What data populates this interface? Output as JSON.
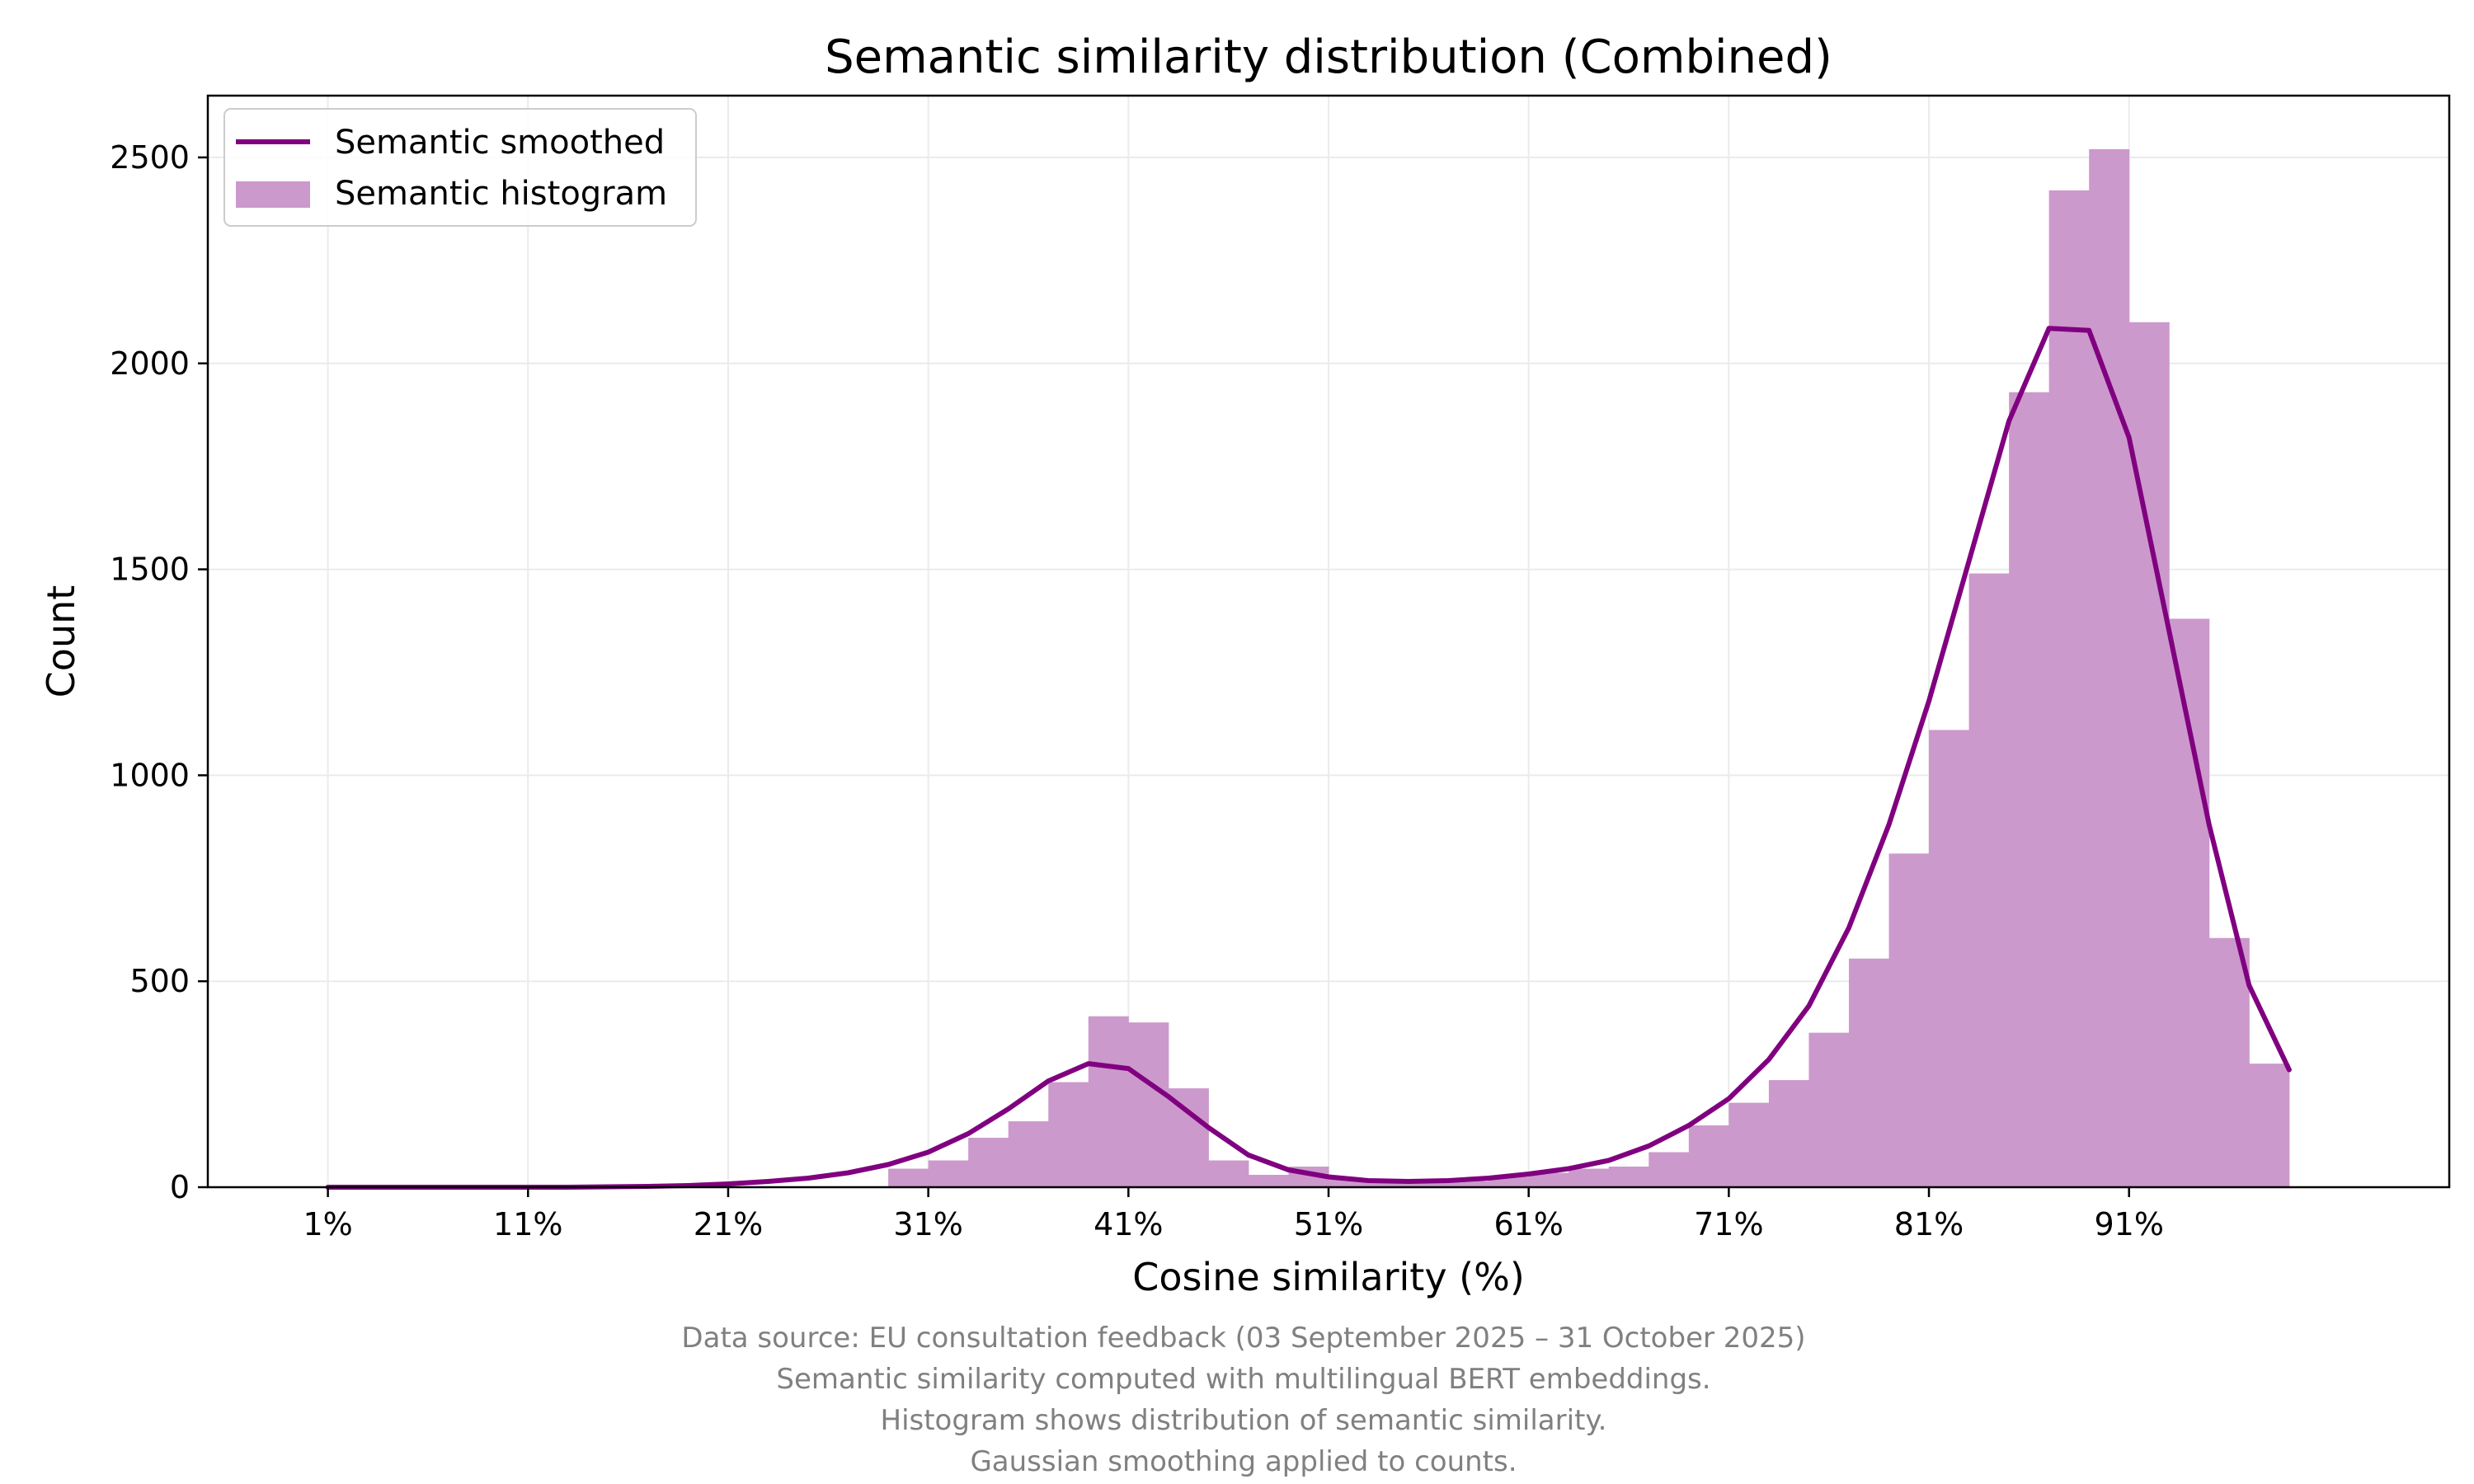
{
  "chart_data": {
    "type": "bar",
    "title": "Semantic similarity distribution (Combined)",
    "xlabel": "Cosine similarity (%)",
    "ylabel": "Count",
    "xlim": [
      -5,
      107
    ],
    "ylim": [
      0,
      2650
    ],
    "grid": true,
    "x_ticks": [
      1,
      11,
      21,
      31,
      41,
      51,
      61,
      71,
      81,
      91
    ],
    "x_tick_labels": [
      "1%",
      "11%",
      "21%",
      "31%",
      "41%",
      "51%",
      "61%",
      "71%",
      "81%",
      "91%"
    ],
    "y_ticks": [
      0,
      500,
      1000,
      1500,
      2000,
      2500
    ],
    "y_tick_labels": [
      "0",
      "500",
      "1000",
      "1500",
      "2000",
      "2500"
    ],
    "legend_position": "top-left",
    "bar_color": "#cc99cc",
    "line_color": "#800080",
    "series": [
      {
        "name": "Semantic histogram",
        "kind": "bar",
        "bin_width": 2,
        "bin_left": [
          29,
          31,
          33,
          35,
          37,
          39,
          41,
          43,
          45,
          47,
          49,
          51,
          53,
          55,
          57,
          59,
          61,
          63,
          65,
          67,
          69,
          71,
          73,
          75,
          77,
          79,
          81,
          83,
          85,
          87,
          89,
          91,
          93,
          95,
          97
        ],
        "values": [
          45,
          65,
          120,
          160,
          255,
          415,
          400,
          240,
          65,
          30,
          50,
          20,
          10,
          10,
          15,
          25,
          35,
          45,
          50,
          85,
          150,
          205,
          260,
          375,
          555,
          810,
          1110,
          1490,
          1930,
          2420,
          2520,
          2100,
          1380,
          605,
          300
        ]
      },
      {
        "name": "Semantic smoothed",
        "kind": "line",
        "x": [
          1,
          3,
          5,
          7,
          9,
          11,
          13,
          15,
          17,
          19,
          21,
          23,
          25,
          27,
          29,
          31,
          33,
          35,
          37,
          39,
          41,
          43,
          45,
          47,
          49,
          51,
          53,
          55,
          57,
          59,
          61,
          63,
          65,
          67,
          69,
          71,
          73,
          75,
          77,
          79,
          81,
          83,
          85,
          87,
          89,
          91,
          93,
          95,
          97,
          99
        ],
        "values": [
          0,
          0,
          0,
          0,
          0,
          0,
          0,
          1,
          2,
          4,
          8,
          14,
          22,
          35,
          55,
          85,
          130,
          190,
          258,
          300,
          288,
          220,
          145,
          78,
          42,
          25,
          16,
          14,
          16,
          22,
          32,
          45,
          65,
          100,
          150,
          215,
          310,
          440,
          630,
          880,
          1180,
          1520,
          1860,
          2085,
          2080,
          1820,
          1350,
          880,
          490,
          285
        ]
      }
    ],
    "footnotes": [
      "Data source: EU consultation feedback (03 September 2025 – 31 October 2025)",
      "Semantic similarity computed with multilingual BERT embeddings.",
      "Histogram shows distribution of semantic similarity.",
      "Gaussian smoothing applied to counts."
    ]
  }
}
